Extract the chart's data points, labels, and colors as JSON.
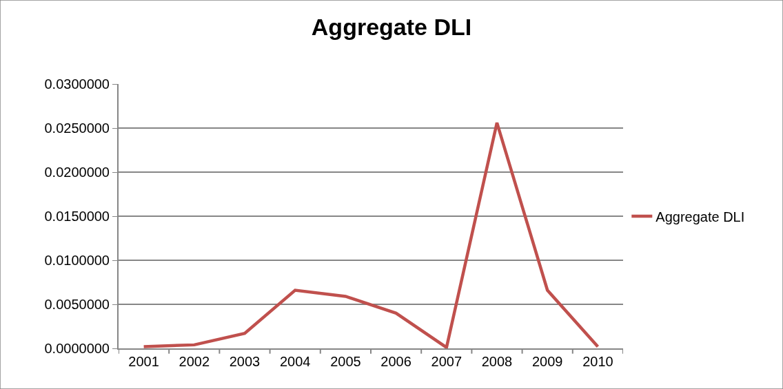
{
  "chart_data": {
    "type": "line",
    "title": "Aggregate DLI",
    "categories": [
      "2001",
      "2002",
      "2003",
      "2004",
      "2005",
      "2006",
      "2007",
      "2008",
      "2009",
      "2010"
    ],
    "series": [
      {
        "name": "Aggregate DLI",
        "color": "#c0504d",
        "values": [
          0.0002,
          0.0004,
          0.0017,
          0.0066,
          0.0059,
          0.004,
          0.0001,
          0.0256,
          0.0066,
          0.0002
        ]
      }
    ],
    "ylim": [
      0,
      0.03
    ],
    "yticks": [
      {
        "value": 0,
        "label": "0.0000000"
      },
      {
        "value": 0.005,
        "label": "0.0050000"
      },
      {
        "value": 0.01,
        "label": "0.0100000"
      },
      {
        "value": 0.015,
        "label": "0.0150000"
      },
      {
        "value": 0.02,
        "label": "0.0200000"
      },
      {
        "value": 0.025,
        "label": "0.0250000"
      },
      {
        "value": 0.03,
        "label": "0.0300000"
      }
    ],
    "grid": "y",
    "legend": "right",
    "marker": "none",
    "line_style": "solid"
  }
}
